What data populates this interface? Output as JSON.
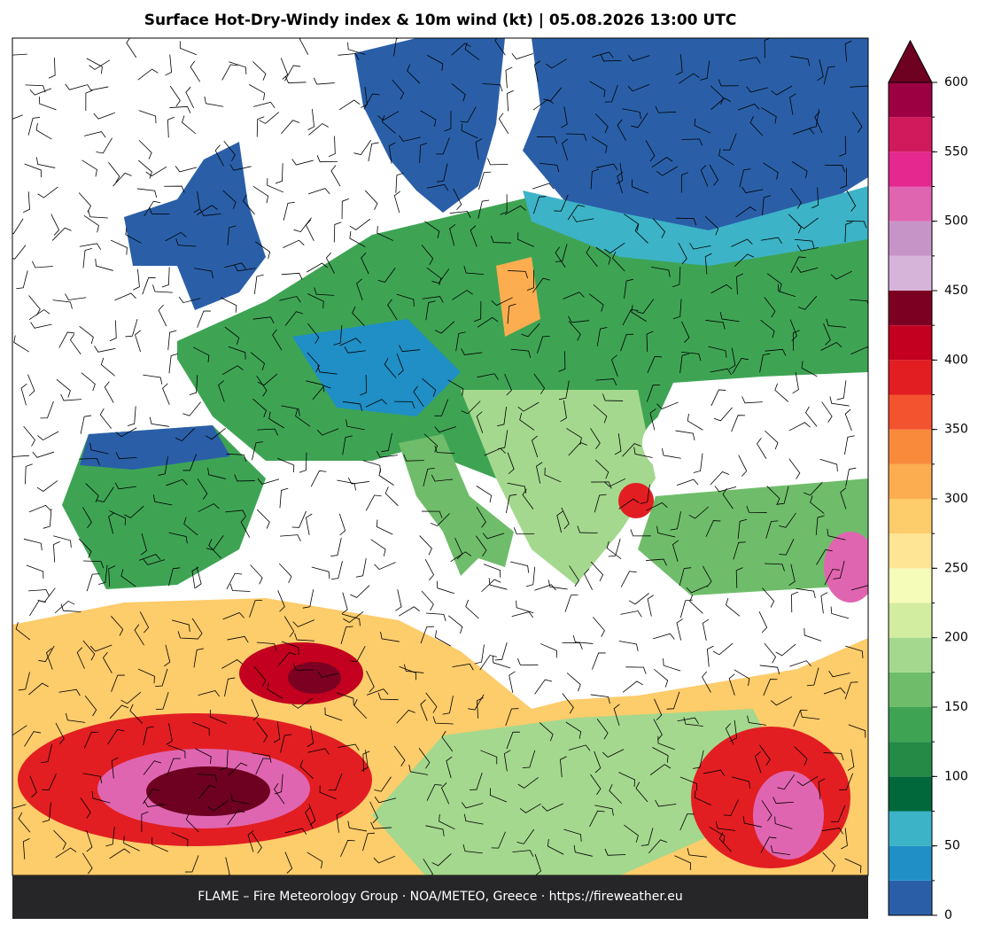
{
  "title": "Surface Hot-Dry-Windy index & 10m wind (kt)  |  05.08.2026 13:00 UTC",
  "colorbar": {
    "levels": [
      0,
      25,
      50,
      75,
      100,
      125,
      150,
      175,
      200,
      225,
      250,
      275,
      300,
      325,
      350,
      375,
      400,
      425,
      450,
      475,
      500,
      525,
      550,
      575,
      600
    ],
    "colors": [
      "#2a5fa8",
      "#1f8fc5",
      "#3db3c7",
      "#00683a",
      "#248a46",
      "#3ea454",
      "#6fbd6a",
      "#a4d88e",
      "#d2eca0",
      "#f5fbb8",
      "#fde595",
      "#fdcc6b",
      "#fcad4f",
      "#f98a3c",
      "#f3532e",
      "#e21e22",
      "#c3001f",
      "#7c0021",
      "#d6b4da",
      "#c794c8",
      "#e065b0",
      "#e5288f",
      "#d01a5c",
      "#9c0043"
    ],
    "extend_color": "#6e0022",
    "ticks": [
      0,
      50,
      100,
      150,
      200,
      250,
      300,
      350,
      400,
      450,
      500,
      550,
      600
    ]
  },
  "footer": "FLAME – Fire Meteorology Group · NOA/METEO, Greece · https://fireweather.eu"
}
